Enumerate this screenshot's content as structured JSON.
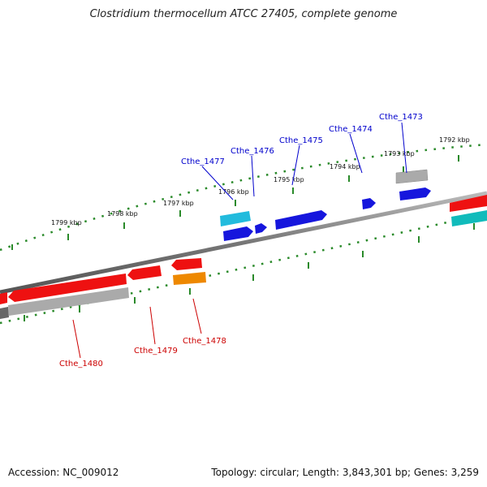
{
  "title": "Clostridium thermocellum ATCC 27405, complete genome",
  "footer": {
    "accession": "Accession: NC_009012",
    "summary": "Topology: circular; Length: 3,843,301 bp; Genes: 3,259"
  },
  "colors": {
    "backbone": "#777777",
    "ruler": "#2a8a2a",
    "forward_label": "#0000cc",
    "reverse_label": "#cc0000",
    "blue": "#1616dd",
    "red": "#ee1111",
    "cyan": "#22bbdd",
    "gray": "#aaaaaa",
    "orange": "#ee8800",
    "teal": "#11bbbb",
    "darkgray": "#666666"
  },
  "ticks": [
    {
      "label": "1792 kbp"
    },
    {
      "label": "1793 kbp"
    },
    {
      "label": "1794 kbp"
    },
    {
      "label": "1795 kbp"
    },
    {
      "label": "1796 kbp"
    },
    {
      "label": "1797 kbp"
    },
    {
      "label": "1798 kbp"
    },
    {
      "label": "1799 kbp"
    }
  ],
  "genes_top": [
    {
      "label": "Cthe_1473"
    },
    {
      "label": "Cthe_1474"
    },
    {
      "label": "Cthe_1475"
    },
    {
      "label": "Cthe_1476"
    },
    {
      "label": "Cthe_1477"
    }
  ],
  "genes_bottom": [
    {
      "label": "Cthe_1478"
    },
    {
      "label": "Cthe_1479"
    },
    {
      "label": "Cthe_1480"
    }
  ]
}
